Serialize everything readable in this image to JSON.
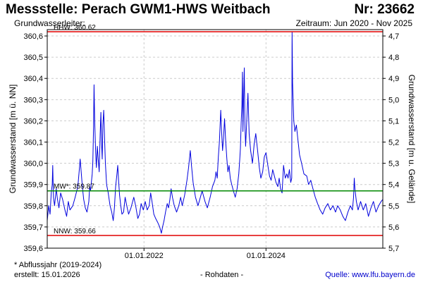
{
  "header": {
    "title": "Messstelle: Perach GWM1-HWS Weitbach",
    "number": "Nr: 23662",
    "aquifer_label": "Grundwasserleiter:",
    "period": "Zeitraum: Jun 2020 - Nov 2025"
  },
  "footer": {
    "note": "* Abflussjahr (2019-2024)",
    "created": "erstellt:  15.01.2026",
    "raw": "- Rohdaten -",
    "source": "Quelle:  www.lfu.bayern.de"
  },
  "colors": {
    "series": "#0000dd",
    "hhw": "#e00000",
    "nnw": "#e00000",
    "mw": "#008800",
    "grid": "#cccccc",
    "frame": "#000000"
  },
  "chart_data": {
    "type": "line",
    "ylabel": "Grundwasserstand [m ü. NN]",
    "ylabel_right": "Grundwasserstand [m u. Gelände]",
    "xlim": [
      "2020-06-01",
      "2025-11-30"
    ],
    "ylim": [
      359.6,
      360.63
    ],
    "yticks": [
      "359,6",
      "359,7",
      "359,8",
      "359,9",
      "360,0",
      "360,1",
      "360,2",
      "360,3",
      "360,4",
      "360,5",
      "360,6"
    ],
    "yticks_right": [
      "4,7",
      "4,8",
      "4,9",
      "5,0",
      "5,1",
      "5,2",
      "5,3",
      "5,4",
      "5,5",
      "5,6",
      "5,7"
    ],
    "xticks": [
      {
        "date": "2022-01-01",
        "label": "01.01.2022"
      },
      {
        "date": "2024-01-01",
        "label": "01.01.2024"
      }
    ],
    "grid": true,
    "reference_lines": [
      {
        "name": "HHW",
        "label": "HHW: 360.62",
        "value": 360.62
      },
      {
        "name": "MW",
        "label": "MW*: 359.87",
        "value": 359.87
      },
      {
        "name": "NNW",
        "label": "NNW: 359.66",
        "value": 359.66
      }
    ],
    "series": [
      {
        "points": [
          [
            "2020-06-01",
            359.73
          ],
          [
            "2020-06-10",
            359.8
          ],
          [
            "2020-06-18",
            359.76
          ],
          [
            "2020-06-25",
            359.86
          ],
          [
            "2020-07-01",
            359.9
          ],
          [
            "2020-07-04",
            359.99
          ],
          [
            "2020-07-08",
            359.84
          ],
          [
            "2020-07-15",
            359.8
          ],
          [
            "2020-07-25",
            359.88
          ],
          [
            "2020-08-01",
            359.83
          ],
          [
            "2020-08-10",
            359.79
          ],
          [
            "2020-08-20",
            359.86
          ],
          [
            "2020-09-01",
            359.83
          ],
          [
            "2020-09-15",
            359.78
          ],
          [
            "2020-09-25",
            359.75
          ],
          [
            "2020-10-05",
            359.82
          ],
          [
            "2020-10-15",
            359.78
          ],
          [
            "2020-11-01",
            359.8
          ],
          [
            "2020-11-15",
            359.84
          ],
          [
            "2020-12-01",
            359.89
          ],
          [
            "2020-12-10",
            359.97
          ],
          [
            "2020-12-15",
            360.02
          ],
          [
            "2020-12-22",
            359.95
          ],
          [
            "2020-12-28",
            359.89
          ],
          [
            "2021-01-05",
            359.83
          ],
          [
            "2021-01-15",
            359.79
          ],
          [
            "2021-01-25",
            359.77
          ],
          [
            "2021-02-05",
            359.82
          ],
          [
            "2021-02-10",
            359.89
          ],
          [
            "2021-02-15",
            359.87
          ],
          [
            "2021-02-25",
            359.95
          ],
          [
            "2021-03-01",
            360.01
          ],
          [
            "2021-03-05",
            360.17
          ],
          [
            "2021-03-08",
            360.37
          ],
          [
            "2021-03-12",
            360.2
          ],
          [
            "2021-03-18",
            360.05
          ],
          [
            "2021-03-22",
            359.98
          ],
          [
            "2021-03-28",
            360.08
          ],
          [
            "2021-04-02",
            360.02
          ],
          [
            "2021-04-08",
            359.96
          ],
          [
            "2021-04-14",
            360.14
          ],
          [
            "2021-04-18",
            360.24
          ],
          [
            "2021-04-22",
            360.1
          ],
          [
            "2021-04-26",
            360.02
          ],
          [
            "2021-04-30",
            360.18
          ],
          [
            "2021-05-05",
            360.25
          ],
          [
            "2021-05-10",
            360.12
          ],
          [
            "2021-05-15",
            360.0
          ],
          [
            "2021-05-22",
            359.9
          ],
          [
            "2021-06-01",
            359.86
          ],
          [
            "2021-06-12",
            359.8
          ],
          [
            "2021-06-22",
            359.77
          ],
          [
            "2021-07-01",
            359.73
          ],
          [
            "2021-07-08",
            359.79
          ],
          [
            "2021-07-15",
            359.89
          ],
          [
            "2021-07-22",
            359.94
          ],
          [
            "2021-07-28",
            359.99
          ],
          [
            "2021-08-02",
            359.92
          ],
          [
            "2021-08-08",
            359.85
          ],
          [
            "2021-08-15",
            359.8
          ],
          [
            "2021-08-22",
            359.76
          ],
          [
            "2021-09-01",
            359.77
          ],
          [
            "2021-09-10",
            359.84
          ],
          [
            "2021-09-20",
            359.8
          ],
          [
            "2021-10-01",
            359.76
          ],
          [
            "2021-10-15",
            359.79
          ],
          [
            "2021-11-01",
            359.84
          ],
          [
            "2021-11-12",
            359.8
          ],
          [
            "2021-11-25",
            359.74
          ],
          [
            "2021-12-05",
            359.76
          ],
          [
            "2021-12-15",
            359.81
          ],
          [
            "2021-12-28",
            359.78
          ],
          [
            "2022-01-08",
            359.82
          ],
          [
            "2022-01-20",
            359.78
          ],
          [
            "2022-02-01",
            359.8
          ],
          [
            "2022-02-10",
            359.86
          ],
          [
            "2022-02-18",
            359.82
          ],
          [
            "2022-03-01",
            359.76
          ],
          [
            "2022-03-12",
            359.74
          ],
          [
            "2022-03-25",
            359.72
          ],
          [
            "2022-04-05",
            359.7
          ],
          [
            "2022-04-15",
            359.67
          ],
          [
            "2022-04-22",
            359.7
          ],
          [
            "2022-05-01",
            359.73
          ],
          [
            "2022-05-10",
            359.77
          ],
          [
            "2022-05-20",
            359.81
          ],
          [
            "2022-05-28",
            359.79
          ],
          [
            "2022-06-05",
            359.83
          ],
          [
            "2022-06-12",
            359.88
          ],
          [
            "2022-06-20",
            359.84
          ],
          [
            "2022-07-01",
            359.8
          ],
          [
            "2022-07-15",
            359.77
          ],
          [
            "2022-07-28",
            359.8
          ],
          [
            "2022-08-08",
            359.84
          ],
          [
            "2022-08-18",
            359.8
          ],
          [
            "2022-09-01",
            359.85
          ],
          [
            "2022-09-15",
            359.92
          ],
          [
            "2022-09-25",
            359.98
          ],
          [
            "2022-10-05",
            360.06
          ],
          [
            "2022-10-12",
            359.99
          ],
          [
            "2022-10-22",
            359.91
          ],
          [
            "2022-11-05",
            359.84
          ],
          [
            "2022-11-20",
            359.8
          ],
          [
            "2022-12-01",
            359.83
          ],
          [
            "2022-12-15",
            359.87
          ],
          [
            "2023-01-01",
            359.82
          ],
          [
            "2023-01-15",
            359.79
          ],
          [
            "2023-02-01",
            359.84
          ],
          [
            "2023-02-15",
            359.89
          ],
          [
            "2023-03-01",
            359.92
          ],
          [
            "2023-03-08",
            359.96
          ],
          [
            "2023-03-15",
            359.93
          ],
          [
            "2023-03-22",
            360.03
          ],
          [
            "2023-03-28",
            360.1
          ],
          [
            "2023-04-05",
            360.25
          ],
          [
            "2023-04-10",
            360.16
          ],
          [
            "2023-04-16",
            360.06
          ],
          [
            "2023-04-22",
            360.12
          ],
          [
            "2023-04-28",
            360.21
          ],
          [
            "2023-05-05",
            360.1
          ],
          [
            "2023-05-12",
            360.02
          ],
          [
            "2023-05-18",
            359.96
          ],
          [
            "2023-05-25",
            359.99
          ],
          [
            "2023-06-01",
            359.93
          ],
          [
            "2023-06-10",
            359.9
          ],
          [
            "2023-06-20",
            359.87
          ],
          [
            "2023-07-01",
            359.84
          ],
          [
            "2023-07-12",
            359.88
          ],
          [
            "2023-07-22",
            359.95
          ],
          [
            "2023-07-28",
            360.02
          ],
          [
            "2023-08-01",
            360.07
          ],
          [
            "2023-08-06",
            360.2
          ],
          [
            "2023-08-10",
            360.28
          ],
          [
            "2023-08-13",
            360.43
          ],
          [
            "2023-08-16",
            360.15
          ],
          [
            "2023-08-20",
            360.3
          ],
          [
            "2023-08-24",
            360.45
          ],
          [
            "2023-08-28",
            360.18
          ],
          [
            "2023-09-01",
            360.08
          ],
          [
            "2023-09-08",
            360.2
          ],
          [
            "2023-09-15",
            360.33
          ],
          [
            "2023-09-22",
            360.14
          ],
          [
            "2023-10-01",
            360.06
          ],
          [
            "2023-10-12",
            360.0
          ],
          [
            "2023-10-22",
            360.09
          ],
          [
            "2023-11-01",
            360.14
          ],
          [
            "2023-11-12",
            360.06
          ],
          [
            "2023-11-22",
            359.98
          ],
          [
            "2023-12-01",
            359.93
          ],
          [
            "2023-12-12",
            359.96
          ],
          [
            "2023-12-22",
            360.03
          ],
          [
            "2024-01-01",
            360.05
          ],
          [
            "2024-01-12",
            359.99
          ],
          [
            "2024-01-22",
            359.94
          ],
          [
            "2024-02-01",
            359.92
          ],
          [
            "2024-02-10",
            359.97
          ],
          [
            "2024-02-20",
            359.94
          ],
          [
            "2024-03-01",
            359.91
          ],
          [
            "2024-03-12",
            359.89
          ],
          [
            "2024-03-20",
            359.93
          ],
          [
            "2024-03-28",
            359.88
          ],
          [
            "2024-04-06",
            359.86
          ],
          [
            "2024-04-15",
            359.99
          ],
          [
            "2024-04-25",
            359.93
          ],
          [
            "2024-05-05",
            359.95
          ],
          [
            "2024-05-12",
            359.93
          ],
          [
            "2024-05-20",
            359.97
          ],
          [
            "2024-05-28",
            359.91
          ],
          [
            "2024-06-03",
            359.93
          ],
          [
            "2024-06-05",
            360.62
          ],
          [
            "2024-06-08",
            360.38
          ],
          [
            "2024-06-15",
            360.2
          ],
          [
            "2024-06-22",
            360.15
          ],
          [
            "2024-07-01",
            360.18
          ],
          [
            "2024-07-10",
            360.11
          ],
          [
            "2024-07-20",
            360.04
          ],
          [
            "2024-08-01",
            360.0
          ],
          [
            "2024-08-15",
            359.95
          ],
          [
            "2024-09-01",
            359.94
          ],
          [
            "2024-09-12",
            359.9
          ],
          [
            "2024-09-25",
            359.92
          ],
          [
            "2024-10-08",
            359.88
          ],
          [
            "2024-10-22",
            359.84
          ],
          [
            "2024-11-05",
            359.81
          ],
          [
            "2024-11-20",
            359.78
          ],
          [
            "2024-12-05",
            359.76
          ],
          [
            "2024-12-20",
            359.79
          ],
          [
            "2025-01-05",
            359.81
          ],
          [
            "2025-01-20",
            359.78
          ],
          [
            "2025-02-05",
            359.8
          ],
          [
            "2025-02-20",
            359.77
          ],
          [
            "2025-03-05",
            359.8
          ],
          [
            "2025-03-20",
            359.78
          ],
          [
            "2025-04-05",
            359.75
          ],
          [
            "2025-04-20",
            359.73
          ],
          [
            "2025-05-05",
            359.77
          ],
          [
            "2025-05-20",
            359.8
          ],
          [
            "2025-06-01",
            359.78
          ],
          [
            "2025-06-08",
            359.84
          ],
          [
            "2025-06-12",
            359.93
          ],
          [
            "2025-06-16",
            359.88
          ],
          [
            "2025-06-25",
            359.82
          ],
          [
            "2025-07-05",
            359.78
          ],
          [
            "2025-07-20",
            359.82
          ],
          [
            "2025-08-05",
            359.78
          ],
          [
            "2025-08-20",
            359.81
          ],
          [
            "2025-09-05",
            359.75
          ],
          [
            "2025-09-20",
            359.79
          ],
          [
            "2025-10-05",
            359.82
          ],
          [
            "2025-10-20",
            359.77
          ],
          [
            "2025-11-05",
            359.8
          ],
          [
            "2025-11-20",
            359.82
          ],
          [
            "2025-11-30",
            359.83
          ]
        ]
      }
    ]
  }
}
